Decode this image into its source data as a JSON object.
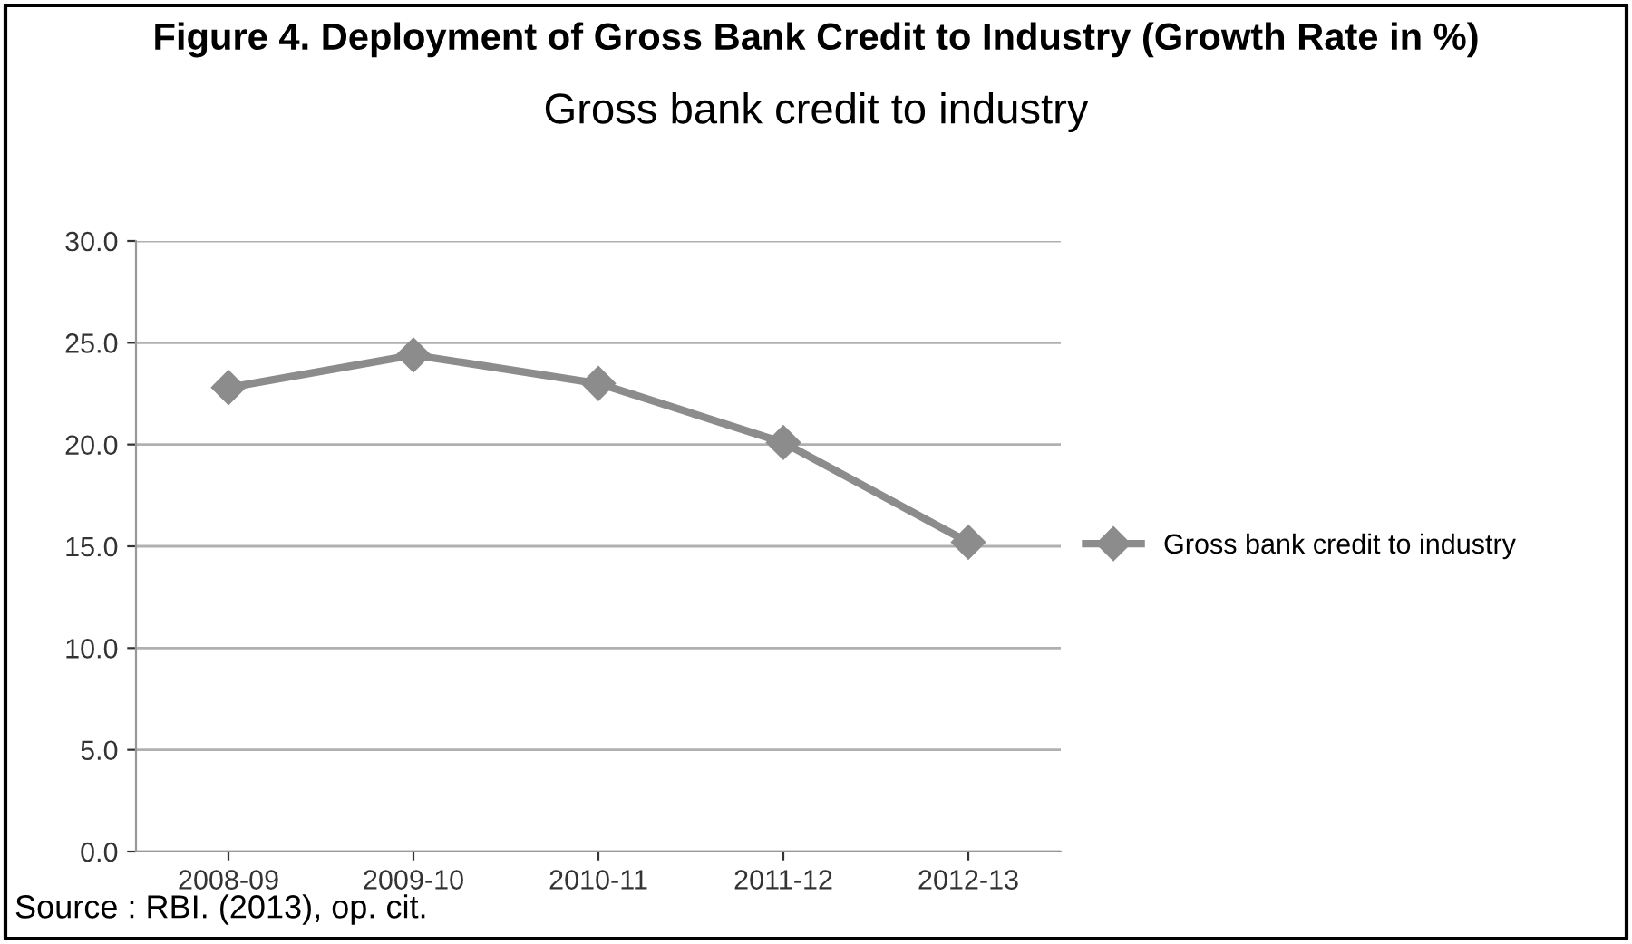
{
  "chart_data": {
    "type": "line",
    "title": "Figure 4. Deployment of Gross Bank Credit to Industry (Growth Rate in %)",
    "subtitle": "Gross bank credit to industry",
    "categories": [
      "2008-09",
      "2009-10",
      "2010-11",
      "2011-12",
      "2012-13"
    ],
    "series": [
      {
        "name": "Gross bank credit to industry",
        "color": "#8c8c8c",
        "values": [
          22.8,
          24.4,
          23.0,
          20.1,
          15.2
        ]
      }
    ],
    "ylim": [
      0,
      30
    ],
    "yticks": [
      {
        "value": 0,
        "label": "0.0"
      },
      {
        "value": 5,
        "label": "5.0"
      },
      {
        "value": 10,
        "label": "10.0"
      },
      {
        "value": 15,
        "label": "15.0"
      },
      {
        "value": 20,
        "label": "20.0"
      },
      {
        "value": 25,
        "label": "25.0"
      },
      {
        "value": 30,
        "label": "30.0"
      }
    ],
    "grid": "y",
    "legend": "right",
    "marker": "diamond",
    "line_style": "solid",
    "annotations": [
      "Source : RBI. (2013), op. cit."
    ]
  }
}
